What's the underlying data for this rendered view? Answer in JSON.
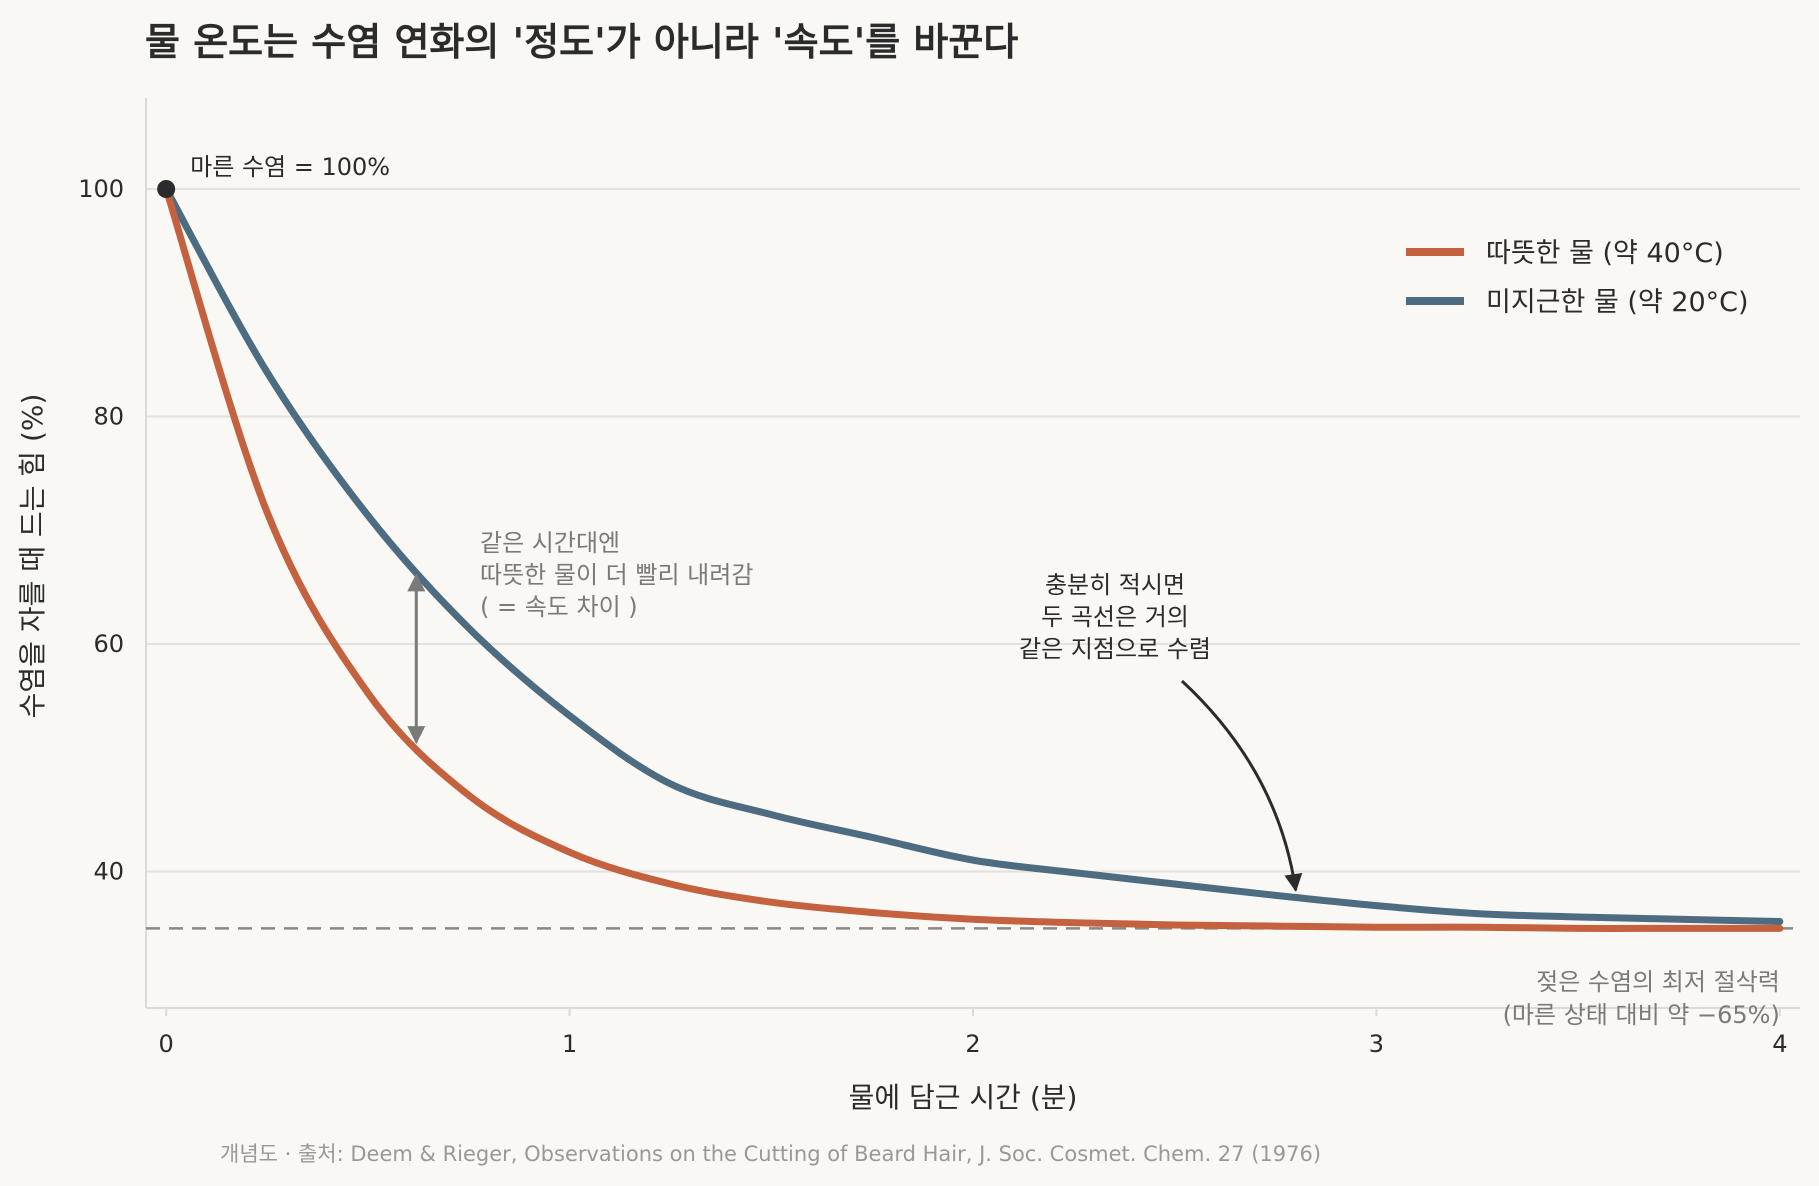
{
  "chart_data": {
    "type": "line",
    "title": "물 온도는 수염 연화의 '정도'가 아니라 '속도'를 바꾼다",
    "xlabel": "물에 담근 시간 (분)",
    "ylabel": "수염을 자를 때 드는 힘 (%)",
    "xlim": [
      -0.05,
      4.05
    ],
    "ylim": [
      28,
      108
    ],
    "xticks": [
      "0",
      "1",
      "2",
      "3",
      "4"
    ],
    "yticks": [
      "40",
      "60",
      "80",
      "100"
    ],
    "grid": "horizontal",
    "legend_position": "top-right",
    "x": [
      0,
      0.25,
      0.5,
      0.75,
      1,
      1.25,
      1.5,
      1.75,
      2,
      2.25,
      2.5,
      2.75,
      3,
      3.25,
      3.5,
      3.75,
      4
    ],
    "series": [
      {
        "name": "따뜻한 물 (약 40°C)",
        "color": "#c4613f",
        "values": [
          100,
          71.6,
          55.7,
          46.7,
          41.7,
          38.9,
          37.3,
          36.4,
          35.8,
          35.5,
          35.3,
          35.2,
          35.1,
          35.1,
          35.0,
          35.0,
          35.0
        ]
      },
      {
        "name": "미지근한 물 (약 20°C)",
        "color": "#4e6c81",
        "values": [
          100,
          83.9,
          71.3,
          61.4,
          53.7,
          47.7,
          45.0,
          43.0,
          41.0,
          39.9,
          38.9,
          37.9,
          37.0,
          36.3,
          36.0,
          35.8,
          35.6
        ]
      }
    ],
    "baseline": {
      "value": 35,
      "label_lines": [
        "젖은 수염의 최저 절삭력",
        "(마른 상태 대비 약 −65%)"
      ]
    },
    "start_point": {
      "x": 0,
      "y": 100,
      "label": "마른 수염 = 100%"
    },
    "speed_gap": {
      "x": 0.62,
      "y_from": 66.4,
      "y_to": 51.0,
      "label_lines": [
        "같은 시간대엔",
        "따뜻한 물이 더 빨리 내려감",
        "( = 속도 차이 )"
      ]
    },
    "convergence": {
      "target_x": 2.8,
      "target_y": 38.0,
      "label_lines": [
        "충분히 적시면",
        "두 곡선은 거의",
        "같은 지점으로 수렴"
      ]
    }
  },
  "footer": "개념도 · 출처: Deem & Rieger, Observations on the Cutting of Beard Hair, J. Soc. Cosmet. Chem. 27 (1976)"
}
